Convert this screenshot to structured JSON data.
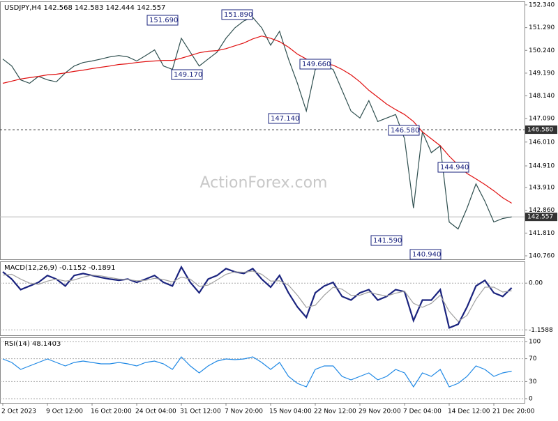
{
  "chart_data": [
    {
      "type": "line",
      "title": "USDJPY,H4  142.568 142.583 142.444 142.557",
      "watermark": "ActionForex.com",
      "categories": [
        "2 Oct 2023",
        null,
        null,
        null,
        null,
        "9 Oct 12:00",
        null,
        null,
        null,
        null,
        "16 Oct 20:00",
        null,
        null,
        null,
        null,
        "24 Oct 04:00",
        null,
        null,
        null,
        null,
        "31 Oct 12:00",
        null,
        null,
        null,
        null,
        "7 Nov 20:00",
        null,
        null,
        null,
        null,
        "15 Nov 04:00",
        null,
        null,
        null,
        null,
        "22 Nov 12:00",
        null,
        null,
        null,
        null,
        "29 Nov 20:00",
        null,
        null,
        null,
        null,
        "7 Dec 04:00",
        null,
        null,
        null,
        null,
        "14 Dec 12:00",
        null,
        null,
        null,
        null,
        "21 Dec 20:00",
        null,
        null
      ],
      "series": [
        {
          "color": "#2f4f4f",
          "values": [
            149.84,
            149.52,
            148.88,
            148.72,
            149.04,
            148.88,
            148.79,
            149.2,
            149.52,
            149.68,
            149.75,
            149.84,
            149.94,
            150.0,
            149.94,
            149.75,
            150.0,
            150.26,
            149.52,
            149.36,
            150.8,
            150.16,
            149.52,
            149.84,
            150.16,
            150.8,
            151.28,
            151.6,
            151.76,
            151.28,
            150.48,
            151.12,
            149.84,
            148.72,
            147.44,
            149.36,
            149.52,
            149.36,
            148.4,
            147.44,
            147.12,
            147.92,
            146.96,
            147.12,
            147.28,
            146.16,
            142.96,
            146.48,
            145.52,
            145.84,
            142.32,
            142.0,
            142.96,
            144.08,
            143.28,
            142.32,
            142.48,
            142.557
          ]
        },
        {
          "color": "#e01010",
          "values": [
            148.72,
            148.82,
            148.92,
            148.98,
            149.04,
            149.11,
            149.14,
            149.2,
            149.27,
            149.33,
            149.4,
            149.46,
            149.52,
            149.59,
            149.62,
            149.68,
            149.72,
            149.75,
            149.78,
            149.78,
            149.88,
            150.0,
            150.13,
            150.2,
            150.23,
            150.32,
            150.45,
            150.58,
            150.77,
            150.9,
            150.8,
            150.64,
            150.39,
            150.07,
            149.84,
            149.68,
            149.62,
            149.56,
            149.36,
            149.11,
            148.79,
            148.4,
            148.08,
            147.76,
            147.51,
            147.28,
            146.96,
            146.48,
            146.16,
            145.84,
            145.36,
            144.95,
            144.56,
            144.31,
            144.05,
            143.76,
            143.44,
            143.19
          ]
        }
      ],
      "ylim": [
        140.6,
        152.5
      ],
      "yticks": [
        {
          "value": 152.34,
          "label": "152.340"
        },
        {
          "value": 151.29,
          "label": "151.290"
        },
        {
          "value": 150.24,
          "label": "150.240"
        },
        {
          "value": 149.19,
          "label": "149.190"
        },
        {
          "value": 148.14,
          "label": "148.140"
        },
        {
          "value": 147.09,
          "label": "147.090"
        },
        {
          "value": 146.01,
          "label": "146.010"
        },
        {
          "value": 144.91,
          "label": "144.910"
        },
        {
          "value": 143.91,
          "label": "143.910"
        },
        {
          "value": 142.86,
          "label": "142.860"
        },
        {
          "value": 141.81,
          "label": "141.810"
        },
        {
          "value": 140.76,
          "label": "140.760"
        }
      ],
      "hlines": [
        {
          "value": 146.58,
          "label": "146.580"
        },
        {
          "value": 142.557,
          "label": "142.557"
        }
      ],
      "annotations": [
        {
          "value": 151.69,
          "label": "151.690"
        },
        {
          "value": 151.89,
          "label": "151.890"
        },
        {
          "value": 149.17,
          "label": "149.170"
        },
        {
          "value": 149.66,
          "label": "149.660"
        },
        {
          "value": 147.14,
          "label": "147.140"
        },
        {
          "value": 146.58,
          "label": "146.580"
        },
        {
          "value": 144.94,
          "label": "144.940"
        },
        {
          "value": 141.59,
          "label": "141.590"
        },
        {
          "value": 140.94,
          "label": "140.940"
        }
      ]
    },
    {
      "type": "line",
      "title": "MACD(12,26,9) -0.1152 -0.1891",
      "series": [
        {
          "color": "#1a237e",
          "values": [
            0.28,
            0.1,
            -0.16,
            -0.07,
            0.02,
            0.19,
            0.1,
            -0.07,
            0.19,
            0.24,
            0.19,
            0.14,
            0.1,
            0.07,
            0.1,
            0.02,
            0.1,
            0.19,
            0.02,
            -0.07,
            0.4,
            0.02,
            -0.24,
            0.1,
            0.19,
            0.36,
            0.28,
            0.24,
            0.36,
            0.1,
            -0.1,
            0.19,
            -0.24,
            -0.59,
            -0.85,
            -0.24,
            -0.07,
            0.02,
            -0.33,
            -0.42,
            -0.24,
            -0.16,
            -0.42,
            -0.33,
            -0.16,
            -0.21,
            -0.93,
            -0.42,
            -0.42,
            -0.16,
            -1.11,
            -1.02,
            -0.59,
            -0.07,
            0.07,
            -0.24,
            -0.33,
            -0.1152
          ]
        },
        {
          "color": "#a0a0a0",
          "values": [
            0.2,
            0.22,
            0.1,
            0.0,
            -0.03,
            0.05,
            0.1,
            0.05,
            0.08,
            0.15,
            0.2,
            0.18,
            0.14,
            0.1,
            0.09,
            0.06,
            0.07,
            0.12,
            0.09,
            0.03,
            0.15,
            0.1,
            -0.08,
            -0.05,
            0.08,
            0.22,
            0.28,
            0.27,
            0.3,
            0.22,
            0.05,
            0.06,
            -0.05,
            -0.3,
            -0.6,
            -0.55,
            -0.3,
            -0.1,
            -0.15,
            -0.3,
            -0.3,
            -0.22,
            -0.28,
            -0.32,
            -0.25,
            -0.2,
            -0.5,
            -0.6,
            -0.5,
            -0.3,
            -0.7,
            -0.95,
            -0.8,
            -0.4,
            -0.1,
            -0.1,
            -0.22,
            -0.1891
          ]
        }
      ],
      "ylim": [
        -1.31,
        0.54
      ],
      "yticks": [
        {
          "value": 0,
          "label": "0.00"
        },
        {
          "value": -1.1588,
          "label": "-1.1588"
        }
      ]
    },
    {
      "type": "line",
      "title": "RSI(14) 48.1403",
      "series": [
        {
          "color": "#1e88e5",
          "values": [
            69.5,
            63.4,
            51.2,
            57.3,
            63.4,
            69.5,
            63.4,
            57.3,
            63.4,
            65.9,
            63.4,
            61.0,
            61.0,
            63.4,
            61.0,
            57.3,
            63.4,
            65.9,
            61.0,
            51.2,
            73.2,
            57.3,
            45.1,
            57.3,
            65.9,
            69.5,
            68.3,
            69.5,
            73.2,
            63.4,
            51.2,
            63.4,
            39.0,
            26.8,
            20.7,
            51.2,
            57.3,
            57.3,
            39.0,
            32.9,
            39.0,
            45.1,
            32.9,
            39.0,
            51.2,
            45.1,
            20.7,
            45.1,
            39.0,
            51.2,
            20.7,
            26.8,
            39.0,
            57.3,
            51.2,
            39.0,
            45.1,
            48.1403
          ]
        }
      ],
      "ylim": [
        -7.3,
        107.3
      ],
      "yticks": [
        0,
        30,
        70,
        100
      ]
    }
  ]
}
